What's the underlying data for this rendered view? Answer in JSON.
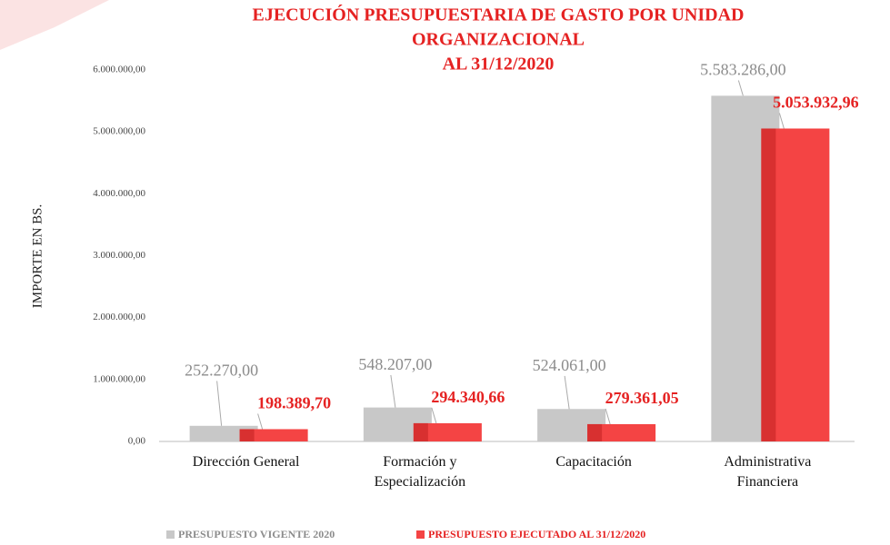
{
  "chart_data": {
    "type": "bar",
    "title": [
      "EJECUCIÓN PRESUPUESTARIA DE GASTO POR UNIDAD",
      "ORGANIZACIONAL",
      "AL 31/12/2020"
    ],
    "y_label": "IMPORTE EN BS.",
    "categories": [
      "Dirección General",
      "Formación y Especialización",
      "Capacitación",
      "Administrativa Financiera"
    ],
    "series": [
      {
        "name": "PRESUPUESTO VIGENTE 2020",
        "color": "#c8c8c8",
        "values": [
          252270,
          548207,
          524061,
          5583286
        ],
        "value_labels": [
          "252.270,00",
          "548.207,00",
          "524.061,00",
          "5.583.286,00"
        ]
      },
      {
        "name": "PRESUPUESTO EJECUTADO AL 31/12/2020",
        "color": "#f44444",
        "values": [
          198389.7,
          294340.66,
          279361.05,
          5053932.96
        ],
        "value_labels": [
          "198.389,70",
          "294.340,66",
          "279.361,05",
          "5.053.932,96"
        ]
      }
    ],
    "ylim": [
      0,
      6000000
    ],
    "yticks": [
      {
        "value": 0,
        "label": "0,00"
      },
      {
        "value": 1000000,
        "label": "1.000.000,00"
      },
      {
        "value": 2000000,
        "label": "2.000.000,00"
      },
      {
        "value": 3000000,
        "label": "3.000.000,00"
      },
      {
        "value": 4000000,
        "label": "4.000.000,00"
      },
      {
        "value": 5000000,
        "label": "5.000.000,00"
      },
      {
        "value": 6000000,
        "label": "6.000.000,00"
      }
    ],
    "legend": "bottom"
  }
}
